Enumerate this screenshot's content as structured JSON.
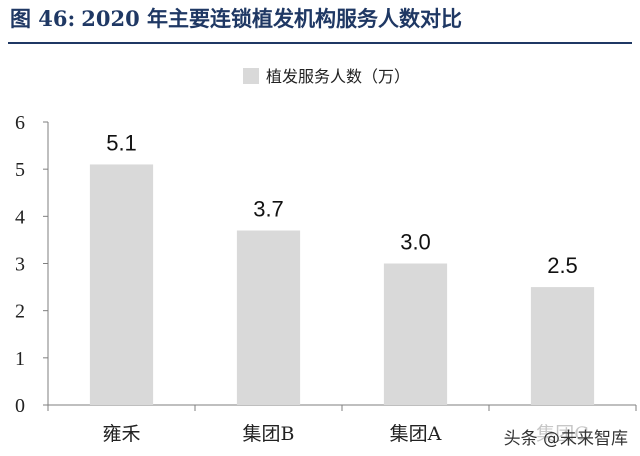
{
  "figure": {
    "number": "图 46:",
    "title": "2020 年主要连锁植发机构服务人数对比"
  },
  "watermark": "头条 @未来智库",
  "colors": {
    "title": "#1f3864",
    "bar": "#d9d9d9",
    "axis": "#7f7f7f"
  },
  "chart_data": {
    "type": "bar",
    "categories": [
      "雍禾",
      "集团B",
      "集团A",
      "集团C"
    ],
    "series": [
      {
        "name": "植发服务人数（万）",
        "values": [
          5.1,
          3.7,
          3.0,
          2.5
        ]
      }
    ],
    "data_labels": [
      "5.1",
      "3.7",
      "3.0",
      "2.5"
    ],
    "yticks": [
      "0",
      "1",
      "2",
      "3",
      "4",
      "5",
      "6"
    ],
    "ylim": [
      0,
      6
    ],
    "legend_position": "top-center",
    "grid": false
  }
}
